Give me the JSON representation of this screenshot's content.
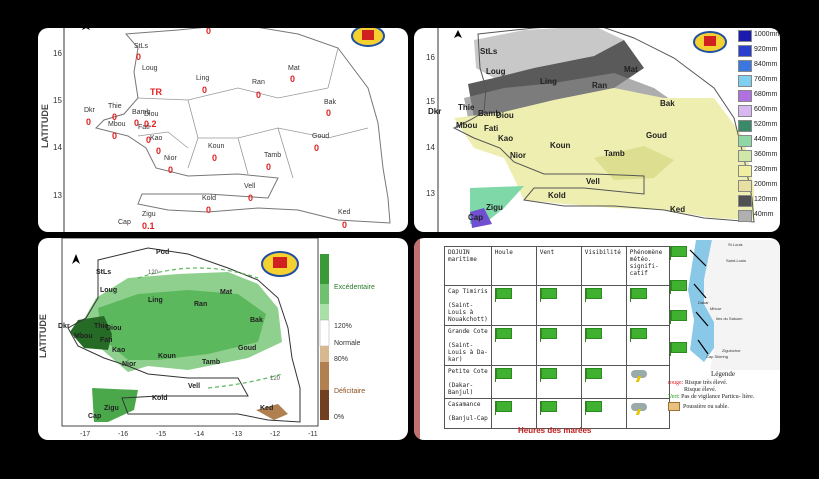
{
  "panel_tl": {
    "axis_label": "LATITUDE",
    "yticks": [
      "16",
      "15",
      "14",
      "13"
    ],
    "stations": [
      {
        "name": "StLs",
        "value": "0"
      },
      {
        "name": "Loug",
        "value": "0"
      },
      {
        "name": "Ling",
        "value": "0"
      },
      {
        "name": "Ran",
        "value": "0"
      },
      {
        "name": "Mat",
        "value": "0"
      },
      {
        "name": "Bak",
        "value": "0"
      },
      {
        "name": "Dkr",
        "value": "0"
      },
      {
        "name": "Thie",
        "value": "0"
      },
      {
        "name": "Mbou",
        "value": "0"
      },
      {
        "name": "Bamb",
        "value": "0"
      },
      {
        "name": "Diou",
        "value": "0.2"
      },
      {
        "name": "Fati",
        "value": "0"
      },
      {
        "name": "Kao",
        "value": "0"
      },
      {
        "name": "Nior",
        "value": "0"
      },
      {
        "name": "Koun",
        "value": "0"
      },
      {
        "name": "Tamb",
        "value": "0"
      },
      {
        "name": "Goud",
        "value": "0"
      },
      {
        "name": "Kold",
        "value": "0"
      },
      {
        "name": "Vell",
        "value": "0"
      },
      {
        "name": "Ked",
        "value": "0"
      },
      {
        "name": "Cap",
        "value": ""
      },
      {
        "name": "Zigu",
        "value": "0.1"
      }
    ],
    "top_value": "0",
    "tr_label": "TR"
  },
  "panel_tr": {
    "yticks": [
      "16",
      "15",
      "14",
      "13"
    ],
    "stations": [
      "StLs",
      "Loug",
      "Ling",
      "Ran",
      "Mat",
      "Bak",
      "Dkr",
      "Thie",
      "Bamb",
      "Diou",
      "Mbou",
      "Fati",
      "Kao",
      "Nior",
      "Koun",
      "Goud",
      "Tamb",
      "Kold",
      "Vell",
      "Ked",
      "Zigu",
      "Cap"
    ],
    "legend": [
      {
        "label": "1000mm",
        "color": "#1a1ab0"
      },
      {
        "label": "920mm",
        "color": "#2a3fd0"
      },
      {
        "label": "840mm",
        "color": "#3a78e0"
      },
      {
        "label": "760mm",
        "color": "#7fd0f0"
      },
      {
        "label": "680mm",
        "color": "#b070e0"
      },
      {
        "label": "600mm",
        "color": "#d8b8f0"
      },
      {
        "label": "520mm",
        "color": "#3a8a6a"
      },
      {
        "label": "440mm",
        "color": "#8ed8a8"
      },
      {
        "label": "360mm",
        "color": "#cfe8a8"
      },
      {
        "label": "280mm",
        "color": "#f0f0a0"
      },
      {
        "label": "200mm",
        "color": "#e8e0a0"
      },
      {
        "label": "120mm",
        "color": "#505050"
      },
      {
        "label": "40mm",
        "color": "#b0b0b0"
      }
    ]
  },
  "panel_bl": {
    "axis_label": "LATITUDE",
    "xticks": [
      "-17",
      "-16",
      "-15",
      "-14",
      "-13",
      "-12",
      "-11"
    ],
    "stations": [
      "Pod",
      "StLs",
      "Loug",
      "Ling",
      "Ran",
      "Mat",
      "Bak",
      "Dkr",
      "Thie",
      "Diou",
      "Mbou",
      "Fati",
      "Kao",
      "Nior",
      "Koun",
      "Goud",
      "Tamb",
      "Vell",
      "Kold",
      "Ked",
      "Zigu",
      "Cap"
    ],
    "isolines": [
      "120",
      "120"
    ],
    "legend": {
      "top_label": "Excédentaire",
      "pct_high": "120%",
      "normal": "Normale",
      "pct_low": "80%",
      "low_label": "Déficitaire",
      "zero": "0%"
    }
  },
  "panel_br": {
    "columns": [
      "DOJUIN\nmaritime",
      "Houle",
      "Vent",
      "Visibilité",
      "Phénomène météo. signifi- catif"
    ],
    "rows": [
      {
        "zone": "Cap Timiris\n\n(Saint-\nLouis à\nNouakchott)",
        "icons": [
          "flag",
          "flag",
          "flag",
          "flag"
        ]
      },
      {
        "zone": "Grande Cote\n\n(Saint-\nLouis à Da-\nkar)",
        "icons": [
          "flag",
          "flag",
          "flag",
          "flag"
        ]
      },
      {
        "zone": "Petite Cote\n\n(Dakar-\nBanjul)",
        "icons": [
          "flag",
          "flag",
          "flag",
          "storm"
        ]
      },
      {
        "zone": "Casamance\n\n(Banjul-Cap",
        "icons": [
          "flag",
          "flag",
          "flag",
          "storm"
        ]
      }
    ],
    "tides_title": "Heures des marées",
    "map_labels": [
      "St Louis",
      "Saint-Louis",
      "Dakar",
      "Mbour",
      "Iles du Saloum",
      "Ziguinchor",
      "Cap Skirring"
    ],
    "legend_title": "Légende",
    "legend_items": [
      {
        "key": "rouge",
        "text": ": Risque très élevé.",
        "color": "#e02020"
      },
      {
        "key": "",
        "text": "Risque élevé.",
        "color": "#e08020"
      },
      {
        "key": "Vert",
        "text": ": Pas de vigilance Particu- lière.",
        "color": "#20a020"
      },
      {
        "key": "",
        "text": "Poussière ou sable.",
        "color": "#c8a060"
      }
    ]
  }
}
